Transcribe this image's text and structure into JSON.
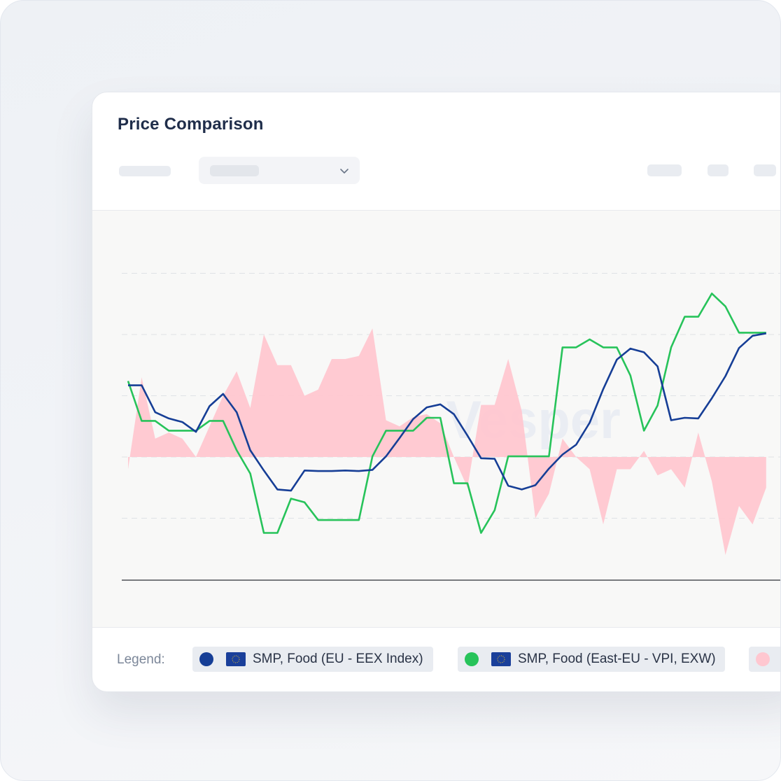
{
  "card": {
    "title": "Price Comparison"
  },
  "legend": {
    "label": "Legend:",
    "items": [
      {
        "name": "SMP, Food (EU - EEX Index)",
        "color": "#163e96",
        "flag": "eu-flag-icon"
      },
      {
        "name": "SMP, Food (East-EU - VPI, EXW)",
        "color": "#27c35a",
        "flag": "eu-flag-icon"
      },
      {
        "name": "",
        "color": "#ffc7d0",
        "flag": ""
      }
    ]
  },
  "chart_data": {
    "type": "line",
    "watermark": "Vesper",
    "x": [
      1,
      2,
      3,
      4,
      5,
      6,
      7,
      8,
      9,
      10,
      11,
      12,
      13,
      14,
      15,
      16,
      17,
      18,
      19,
      20,
      21,
      22,
      23,
      24,
      25,
      26,
      27,
      28,
      29,
      30,
      31,
      32,
      33,
      34,
      35,
      36,
      37,
      38,
      39,
      40,
      41,
      42,
      43,
      44,
      45,
      46,
      47,
      48
    ],
    "ylim": [
      -2,
      3
    ],
    "grid": true,
    "series": [
      {
        "name": "SMP, Food (EU - EEX Index)",
        "color": "#163e96",
        "values": [
          1.17,
          1.17,
          0.73,
          0.63,
          0.57,
          0.41,
          0.83,
          1.03,
          0.73,
          0.11,
          -0.22,
          -0.53,
          -0.55,
          -0.22,
          -0.23,
          -0.23,
          -0.22,
          -0.23,
          -0.21,
          0.01,
          0.31,
          0.62,
          0.81,
          0.86,
          0.7,
          0.35,
          -0.02,
          -0.03,
          -0.47,
          -0.53,
          -0.46,
          -0.19,
          0.04,
          0.2,
          0.56,
          1.11,
          1.59,
          1.77,
          1.71,
          1.48,
          0.6,
          0.64,
          0.63,
          0.96,
          1.32,
          1.78,
          1.98,
          2.02
        ]
      },
      {
        "name": "SMP, Food (East-EU - VPI, EXW)",
        "color": "#27c35a",
        "values": [
          1.24,
          0.59,
          0.59,
          0.43,
          0.43,
          0.43,
          0.59,
          0.59,
          0.11,
          -0.27,
          -1.24,
          -1.24,
          -0.68,
          -0.74,
          -1.03,
          -1.03,
          -1.03,
          -1.03,
          0.01,
          0.43,
          0.43,
          0.43,
          0.64,
          0.64,
          -0.43,
          -0.43,
          -1.24,
          -0.87,
          0.01,
          0.01,
          0.01,
          0.01,
          1.79,
          1.79,
          1.92,
          1.79,
          1.79,
          1.33,
          0.43,
          0.84,
          1.79,
          2.29,
          2.29,
          2.67,
          2.46,
          2.03,
          2.03,
          2.03
        ]
      },
      {
        "name": "",
        "color": "#ffc7d0",
        "values": [
          -0.2,
          1.3,
          0.3,
          0.4,
          0.3,
          0.0,
          0.5,
          1.0,
          1.4,
          0.8,
          2.0,
          1.5,
          1.5,
          1.0,
          1.1,
          1.6,
          1.6,
          1.65,
          2.1,
          0.6,
          0.5,
          0.65,
          0.7,
          0.55,
          0.0,
          -0.5,
          0.85,
          0.85,
          1.6,
          0.75,
          -1.0,
          -0.6,
          0.3,
          0.0,
          -0.2,
          -1.1,
          -0.2,
          -0.2,
          0.1,
          -0.3,
          -0.2,
          -0.5,
          0.4,
          -0.4,
          -1.6,
          -0.8,
          -1.1,
          -0.5
        ]
      }
    ]
  }
}
